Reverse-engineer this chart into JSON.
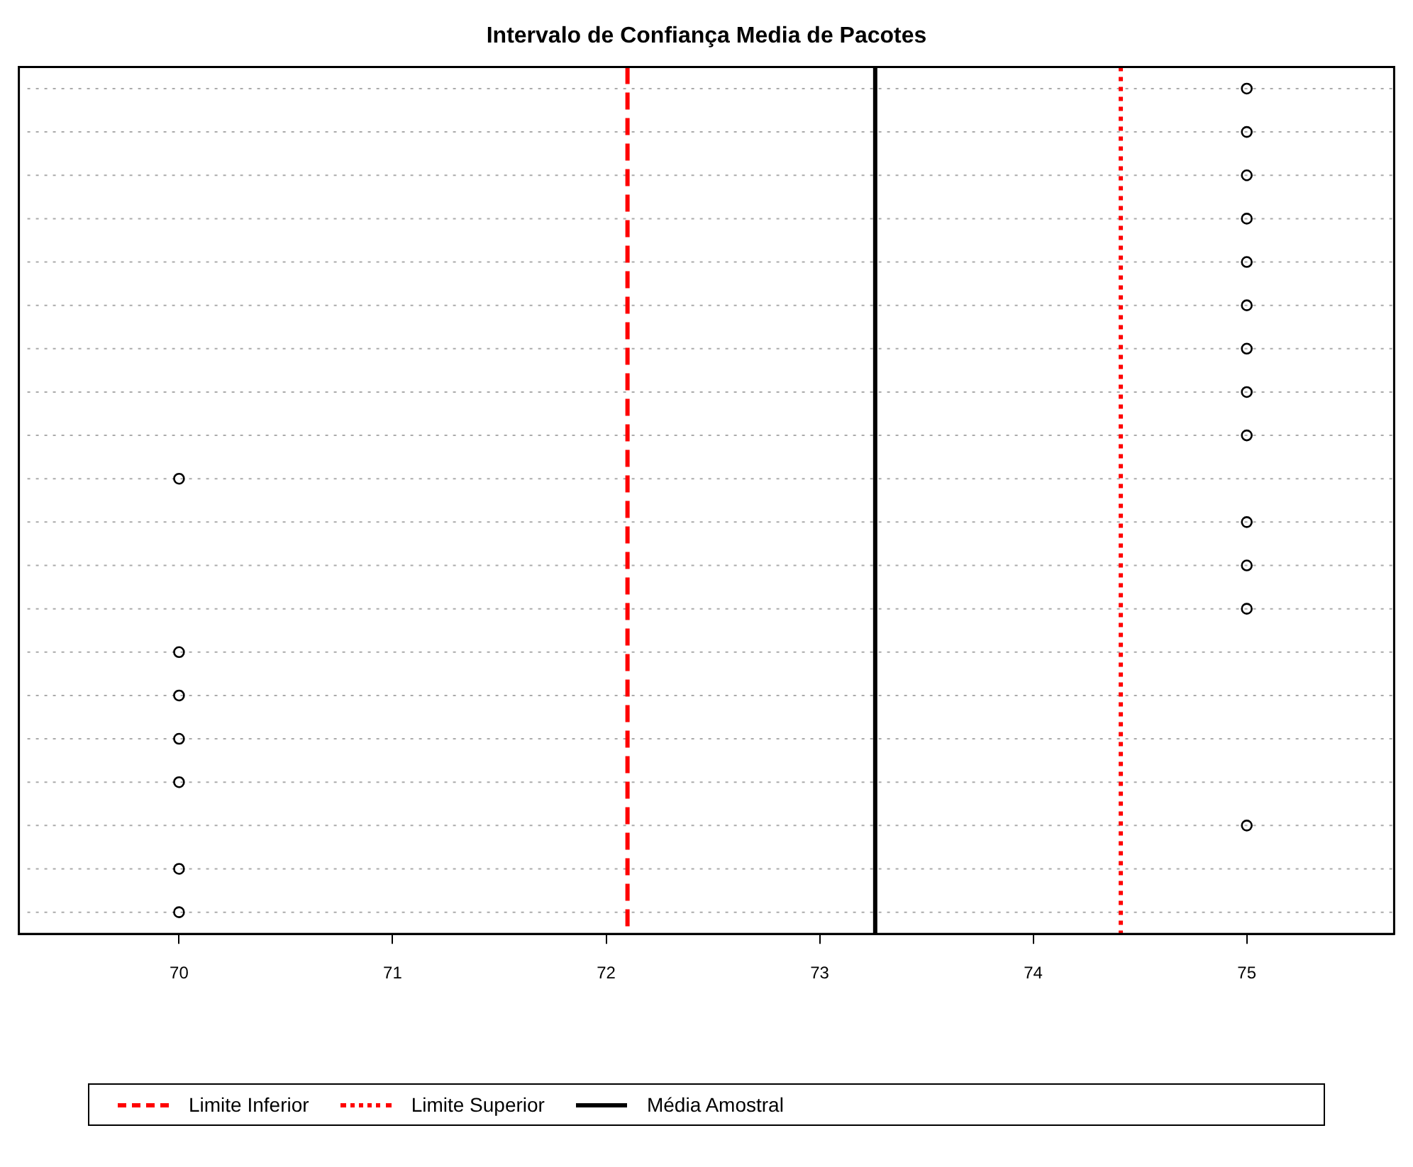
{
  "chart_data": {
    "type": "scatter",
    "orientation": "horizontal",
    "title": "Intervalo de Confiança Media de Pacotes",
    "categories": [
      null,
      null,
      null,
      null,
      null,
      null,
      null,
      null,
      null,
      null,
      null,
      null,
      null,
      null,
      null,
      null,
      null,
      null,
      null,
      null
    ],
    "series": [
      {
        "color": "#000000",
        "values": [
          75,
          75,
          75,
          75,
          75,
          75,
          75,
          75,
          75,
          70,
          75,
          75,
          75,
          70,
          70,
          70,
          70,
          75,
          70,
          70
        ]
      }
    ],
    "xlim": [
      69.25,
      75.69
    ],
    "xticks": [
      70,
      71,
      72,
      73,
      74,
      75
    ],
    "ref_lines": [
      {
        "axis": "x",
        "value": 72.1,
        "label": "Limite Inferior",
        "color": "#ff0000",
        "line_style": "dashed"
      },
      {
        "axis": "x",
        "value": 74.41,
        "label": "Limite Superior",
        "color": "#ff0000",
        "line_style": "dotted"
      },
      {
        "axis": "x",
        "value": 73.26,
        "label": "Média Amostral",
        "color": "#000000",
        "line_style": "solid"
      }
    ],
    "grid": "y",
    "legend": "bottom",
    "marker": "circle"
  }
}
